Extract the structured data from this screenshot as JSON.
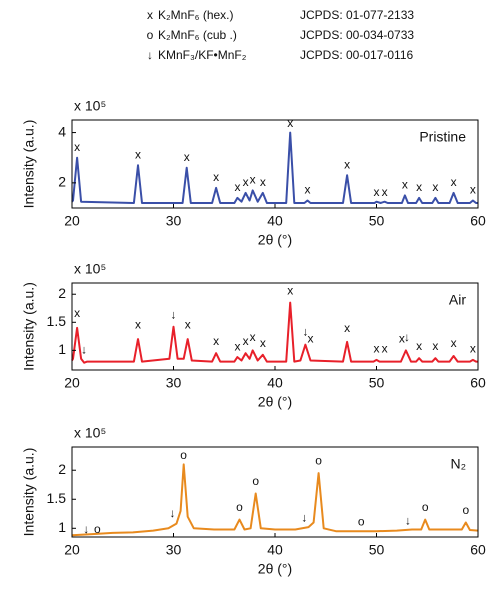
{
  "phase_legend": [
    {
      "symbol": "x",
      "label": "K₂MnF₆ (hex.)",
      "ref": "JCPDS: 01-077-2133"
    },
    {
      "symbol": "o",
      "label": "K₂MnF₆ (cub .)",
      "ref": "JCPDS: 00-034-0733"
    },
    {
      "symbol": "↓",
      "label": "KMnF₃/KF•MnF₂",
      "ref": "JCPDS: 00-017-0116"
    }
  ],
  "chart_data": [
    {
      "type": "line",
      "panel_label": "Pristine",
      "y_multiplier": "x 10⁵",
      "ylabel": "Intensity (a.u.)",
      "xlabel": "2θ (°)",
      "xlim": [
        20,
        60
      ],
      "xticks": [
        20,
        30,
        40,
        50,
        60
      ],
      "ylim": [
        1,
        4.5
      ],
      "yticks": [
        2,
        4
      ],
      "series": [
        {
          "name": "Pristine",
          "color": "#3a4fa8",
          "x": [
            20,
            20.1,
            20.5,
            20.9,
            26.1,
            26.5,
            26.9,
            30.9,
            31.3,
            31.7,
            33.8,
            34.2,
            34.6,
            36.0,
            36.3,
            36.7,
            37.1,
            37.5,
            37.8,
            38.3,
            38.8,
            39.2,
            41.1,
            41.5,
            41.9,
            42.9,
            43.2,
            43.5,
            46.7,
            47.1,
            47.5,
            49.8,
            50.0,
            50.4,
            50.8,
            51.1,
            52.5,
            52.8,
            53.1,
            53.9,
            54.2,
            54.5,
            55.5,
            55.8,
            56.1,
            57.2,
            57.6,
            58.0,
            59.2,
            59.5,
            59.8,
            60
          ],
          "values": [
            1.25,
            1.3,
            3.0,
            1.25,
            1.2,
            2.7,
            1.2,
            1.2,
            2.6,
            1.2,
            1.2,
            1.8,
            1.2,
            1.2,
            1.4,
            1.25,
            1.6,
            1.3,
            1.7,
            1.25,
            1.6,
            1.2,
            1.2,
            4.0,
            1.2,
            1.2,
            1.3,
            1.2,
            1.2,
            2.3,
            1.2,
            1.2,
            1.25,
            1.2,
            1.25,
            1.2,
            1.2,
            1.5,
            1.2,
            1.2,
            1.4,
            1.2,
            1.2,
            1.4,
            1.2,
            1.2,
            1.6,
            1.2,
            1.2,
            1.3,
            1.2,
            1.2
          ]
        }
      ],
      "markers": [
        {
          "symbol": "x",
          "x": [
            20.5,
            26.5,
            31.3,
            34.2,
            36.3,
            37.1,
            37.8,
            38.8,
            41.5,
            43.2,
            47.1,
            50.0,
            50.8,
            52.8,
            54.2,
            55.8,
            57.6,
            59.5
          ],
          "y": [
            3.4,
            3.1,
            3.0,
            2.2,
            1.8,
            2.0,
            2.1,
            2.0,
            4.35,
            1.7,
            2.7,
            1.6,
            1.6,
            1.9,
            1.8,
            1.8,
            2.0,
            1.7
          ]
        }
      ]
    },
    {
      "type": "line",
      "panel_label": "Air",
      "y_multiplier": "x 10⁵",
      "ylabel": "Intensity (a.u.)",
      "xlabel": "2θ (°)",
      "xlim": [
        20,
        60
      ],
      "xticks": [
        20,
        30,
        40,
        50,
        60
      ],
      "ylim": [
        0.65,
        2.2
      ],
      "yticks": [
        1,
        1.5,
        2
      ],
      "series": [
        {
          "name": "Air",
          "color": "#e8202a",
          "x": [
            20,
            20.1,
            20.5,
            20.9,
            21.2,
            21.5,
            26.1,
            26.5,
            26.9,
            29.6,
            30.0,
            30.4,
            31.0,
            31.4,
            31.8,
            33.8,
            34.2,
            34.6,
            36.0,
            36.3,
            36.7,
            37.1,
            37.5,
            37.8,
            38.3,
            38.8,
            39.2,
            41.1,
            41.5,
            41.9,
            42.5,
            43.0,
            43.5,
            46.7,
            47.1,
            47.5,
            49.7,
            50.0,
            50.3,
            52.4,
            52.9,
            53.4,
            53.9,
            54.2,
            54.5,
            55.5,
            55.8,
            56.1,
            57.2,
            57.6,
            58.0,
            59.2,
            59.5,
            59.8,
            60
          ],
          "values": [
            0.82,
            0.85,
            1.4,
            0.85,
            0.78,
            0.8,
            0.8,
            1.2,
            0.8,
            0.85,
            1.42,
            0.85,
            0.85,
            1.2,
            0.82,
            0.8,
            0.95,
            0.8,
            0.8,
            0.88,
            0.82,
            0.95,
            0.85,
            1.0,
            0.82,
            0.92,
            0.8,
            0.8,
            1.85,
            0.8,
            0.82,
            1.1,
            0.82,
            0.8,
            1.15,
            0.8,
            0.8,
            0.83,
            0.8,
            0.8,
            1.0,
            0.8,
            0.8,
            0.86,
            0.8,
            0.8,
            0.86,
            0.8,
            0.8,
            0.9,
            0.8,
            0.8,
            0.83,
            0.8,
            0.8
          ]
        }
      ],
      "markers": [
        {
          "symbol": "x",
          "x": [
            20.5,
            26.5,
            31.4,
            34.2,
            36.3,
            37.1,
            37.8,
            38.8,
            41.5,
            43.5,
            47.1,
            50.0,
            50.8,
            52.5,
            54.2,
            55.8,
            57.6,
            59.5
          ],
          "y": [
            1.65,
            1.45,
            1.45,
            1.15,
            1.05,
            1.15,
            1.22,
            1.12,
            2.05,
            1.2,
            1.38,
            1.02,
            1.02,
            1.2,
            1.06,
            1.06,
            1.12,
            1.02
          ]
        },
        {
          "symbol": "↓",
          "x": [
            21.2,
            30.0,
            43.0,
            53.0
          ],
          "y": [
            1.0,
            1.62,
            1.32,
            1.22
          ]
        }
      ]
    },
    {
      "type": "line",
      "panel_label": "N₂",
      "y_multiplier": "x 10⁵",
      "ylabel": "Intensity (a.u.)",
      "xlabel": "2θ (°)",
      "xlim": [
        20,
        60
      ],
      "xticks": [
        20,
        30,
        40,
        50,
        60
      ],
      "ylim": [
        0.85,
        2.4
      ],
      "yticks": [
        1,
        1.5,
        2
      ],
      "series": [
        {
          "name": "N₂",
          "color": "#e88a1e",
          "x": [
            20,
            22,
            24,
            26,
            28,
            29.5,
            30.3,
            30.7,
            31.0,
            31.4,
            32,
            34,
            36.0,
            36.5,
            37.0,
            37.6,
            38.1,
            38.6,
            40,
            42,
            43.3,
            43.8,
            44.3,
            44.8,
            46,
            48,
            50,
            52,
            53.5,
            54.4,
            54.8,
            55.2,
            57,
            58.4,
            58.8,
            59.2,
            60
          ],
          "values": [
            0.88,
            0.9,
            0.92,
            0.93,
            0.96,
            1.0,
            1.08,
            1.3,
            2.1,
            1.2,
            1.0,
            0.98,
            0.98,
            1.15,
            0.98,
            1.0,
            1.6,
            1.0,
            0.98,
            0.98,
            1.02,
            1.1,
            1.95,
            1.0,
            0.95,
            0.95,
            0.95,
            0.96,
            0.98,
            0.98,
            1.15,
            0.98,
            0.98,
            0.98,
            1.1,
            0.97,
            0.96
          ]
        }
      ],
      "markers": [
        {
          "symbol": "o",
          "x": [
            22.5,
            31.0,
            36.5,
            38.1,
            44.3,
            48.5,
            54.8,
            58.8
          ],
          "y": [
            0.97,
            2.25,
            1.35,
            1.8,
            2.15,
            1.1,
            1.35,
            1.3
          ]
        },
        {
          "symbol": "↓",
          "x": [
            21.4,
            29.9,
            42.9,
            53.1
          ],
          "y": [
            0.97,
            1.25,
            1.17,
            1.12
          ]
        }
      ]
    }
  ]
}
